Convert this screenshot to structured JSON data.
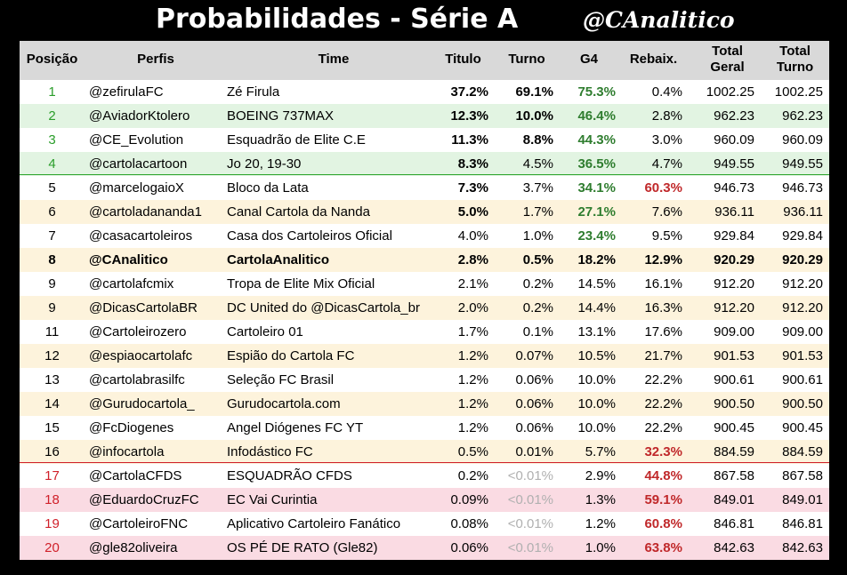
{
  "header": {
    "title": "Probabilidades - Série A",
    "brand": "@CAnalitico"
  },
  "table": {
    "columns": [
      "Posição",
      "Perfis",
      "Time",
      "Titulo",
      "Turno",
      "G4",
      "Rebaix.",
      "Total Geral",
      "Total Turno"
    ],
    "rows": [
      [
        "1",
        "@zefirulaFC",
        "Zé Firula",
        "37.2%",
        "69.1%",
        "75.3%",
        "0.4%",
        "1002.25",
        "1002.25"
      ],
      [
        "2",
        "@AviadorKtolero",
        "BOEING 737MAX",
        "12.3%",
        "10.0%",
        "46.4%",
        "2.8%",
        "962.23",
        "962.23"
      ],
      [
        "3",
        "@CE_Evolution",
        "Esquadrão de Elite C.E",
        "11.3%",
        "8.8%",
        "44.3%",
        "3.0%",
        "960.09",
        "960.09"
      ],
      [
        "4",
        "@cartolacartoon",
        "Jo 20, 19-30",
        "8.3%",
        "4.5%",
        "36.5%",
        "4.7%",
        "949.55",
        "949.55"
      ],
      [
        "5",
        "@marcelogaioX",
        "Bloco da Lata",
        "7.3%",
        "3.7%",
        "34.1%",
        "60.3%",
        "946.73",
        "946.73"
      ],
      [
        "6",
        "@cartoladananda1",
        "Canal Cartola da Nanda",
        "5.0%",
        "1.7%",
        "27.1%",
        "7.6%",
        "936.11",
        "936.11"
      ],
      [
        "7",
        "@casacartoleiros",
        "Casa dos Cartoleiros Oficial",
        "4.0%",
        "1.0%",
        "23.4%",
        "9.5%",
        "929.84",
        "929.84"
      ],
      [
        "8",
        "@CAnalitico",
        "CartolaAnalitico",
        "2.8%",
        "0.5%",
        "18.2%",
        "12.9%",
        "920.29",
        "920.29"
      ],
      [
        "9",
        "@cartolafcmix",
        "Tropa de Elite Mix Oficial",
        "2.1%",
        "0.2%",
        "14.5%",
        "16.1%",
        "912.20",
        "912.20"
      ],
      [
        "9",
        "@DicasCartolaBR",
        "DC United do @DicasCartola_br",
        "2.0%",
        "0.2%",
        "14.4%",
        "16.3%",
        "912.20",
        "912.20"
      ],
      [
        "11",
        "@Cartoleirozero",
        "Cartoleiro 01",
        "1.7%",
        "0.1%",
        "13.1%",
        "17.6%",
        "909.00",
        "909.00"
      ],
      [
        "12",
        "@espiaocartolafc",
        "Espião do Cartola FC",
        "1.2%",
        "0.07%",
        "10.5%",
        "21.7%",
        "901.53",
        "901.53"
      ],
      [
        "13",
        "@cartolabrasilfc",
        "Seleção FC Brasil",
        "1.2%",
        "0.06%",
        "10.0%",
        "22.2%",
        "900.61",
        "900.61"
      ],
      [
        "14",
        "@Gurudocartola_",
        "Gurudocartola.com",
        "1.2%",
        "0.06%",
        "10.0%",
        "22.2%",
        "900.50",
        "900.50"
      ],
      [
        "15",
        "@FcDiogenes",
        "Angel Diógenes FC YT",
        "1.2%",
        "0.06%",
        "10.0%",
        "22.2%",
        "900.45",
        "900.45"
      ],
      [
        "16",
        "@infocartola",
        "Infodástico FC",
        "0.5%",
        "0.01%",
        "5.7%",
        "32.3%",
        "884.59",
        "884.59"
      ],
      [
        "17",
        "@CartolaCFDS",
        "ESQUADRÃO CFDS",
        "0.2%",
        "<0.01%",
        "2.9%",
        "44.8%",
        "867.58",
        "867.58"
      ],
      [
        "18",
        "@EduardoCruzFC",
        "EC Vai Curintia",
        "0.09%",
        "<0.01%",
        "1.3%",
        "59.1%",
        "849.01",
        "849.01"
      ],
      [
        "19",
        "@CartoleiroFNC",
        "Aplicativo Cartoleiro Fanático",
        "0.08%",
        "<0.01%",
        "1.2%",
        "60.8%",
        "846.81",
        "846.81"
      ],
      [
        "20",
        "@gle82oliveira",
        "OS PÉ DE RATO (Gle82)",
        "0.06%",
        "<0.01%",
        "1.0%",
        "63.8%",
        "842.63",
        "842.63"
      ]
    ]
  }
}
